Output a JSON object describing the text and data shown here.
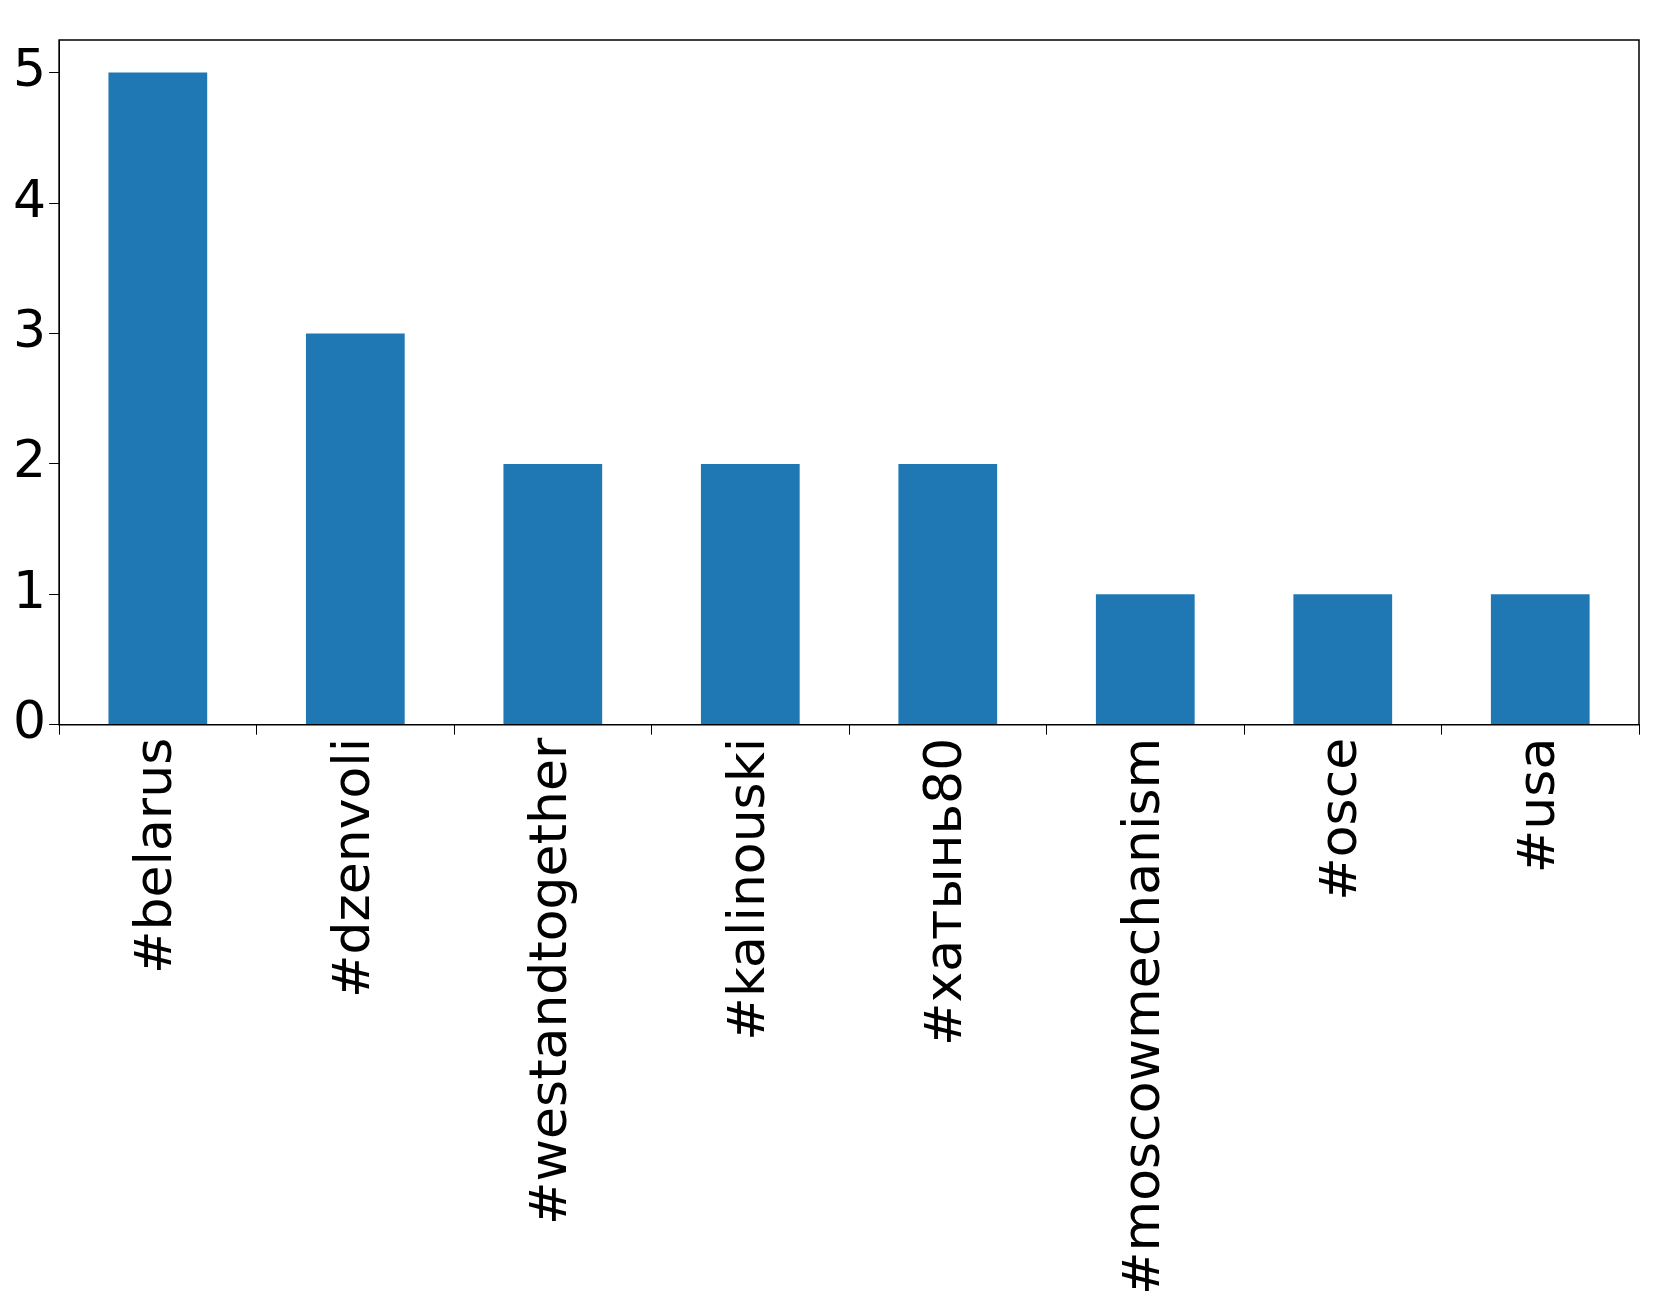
{
  "chart_data": {
    "type": "bar",
    "categories": [
      "#belarus",
      "#dzenvoli",
      "#westandtogether",
      "#kalinouski",
      "#хатынь80",
      "#moscowmechanism",
      "#osce",
      "#usa"
    ],
    "values": [
      5,
      3,
      2,
      2,
      2,
      1,
      1,
      1
    ],
    "color": "#1f77b4",
    "ylim": [
      0,
      5.25
    ],
    "yticks": [
      0,
      1,
      2,
      3,
      4,
      5
    ],
    "grid": false,
    "legend": false
  }
}
